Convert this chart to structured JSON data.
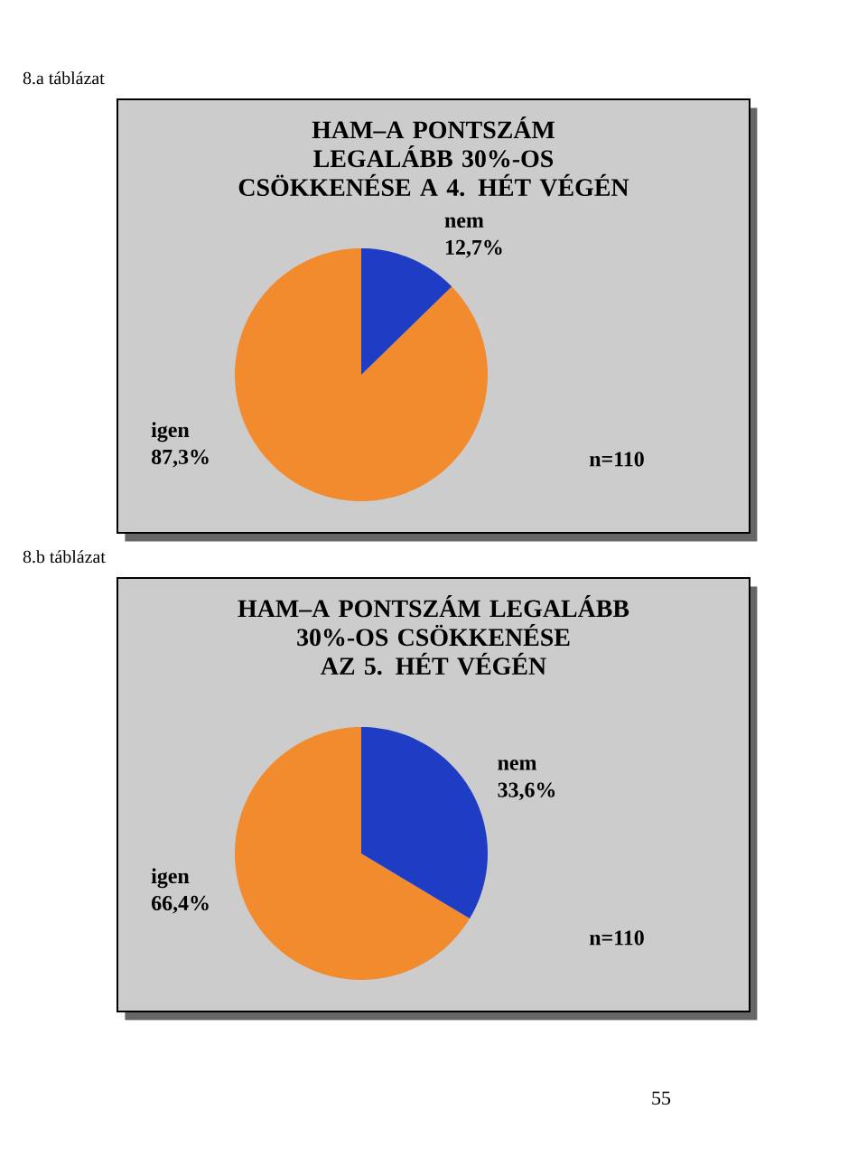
{
  "chart_data": [
    {
      "type": "pie",
      "title": "HAM–A PONTSZÁM LEGALÁBB 30%-OS CSÖKKENÉSE A 4. HÉT VÉGÉN",
      "categories": [
        "igen",
        "nem"
      ],
      "values": [
        87.3,
        12.7
      ],
      "value_labels": [
        "87,3%",
        "12,7%"
      ],
      "colors": [
        "#f28a2e",
        "#1f3cc4"
      ],
      "annotations": [
        "8.a táblázat",
        "n=110"
      ]
    },
    {
      "type": "pie",
      "title": "HAM–A PONTSZÁM LEGALÁBB 30%-OS CSÖKKENÉSE AZ 5. HÉT VÉGÉN",
      "categories": [
        "igen",
        "nem"
      ],
      "values": [
        66.4,
        33.6
      ],
      "value_labels": [
        "66,4%",
        "33,6%"
      ],
      "colors": [
        "#f28a2e",
        "#1f3cc4"
      ],
      "annotations": [
        "8.b táblázat",
        "n=110",
        "55"
      ]
    }
  ]
}
